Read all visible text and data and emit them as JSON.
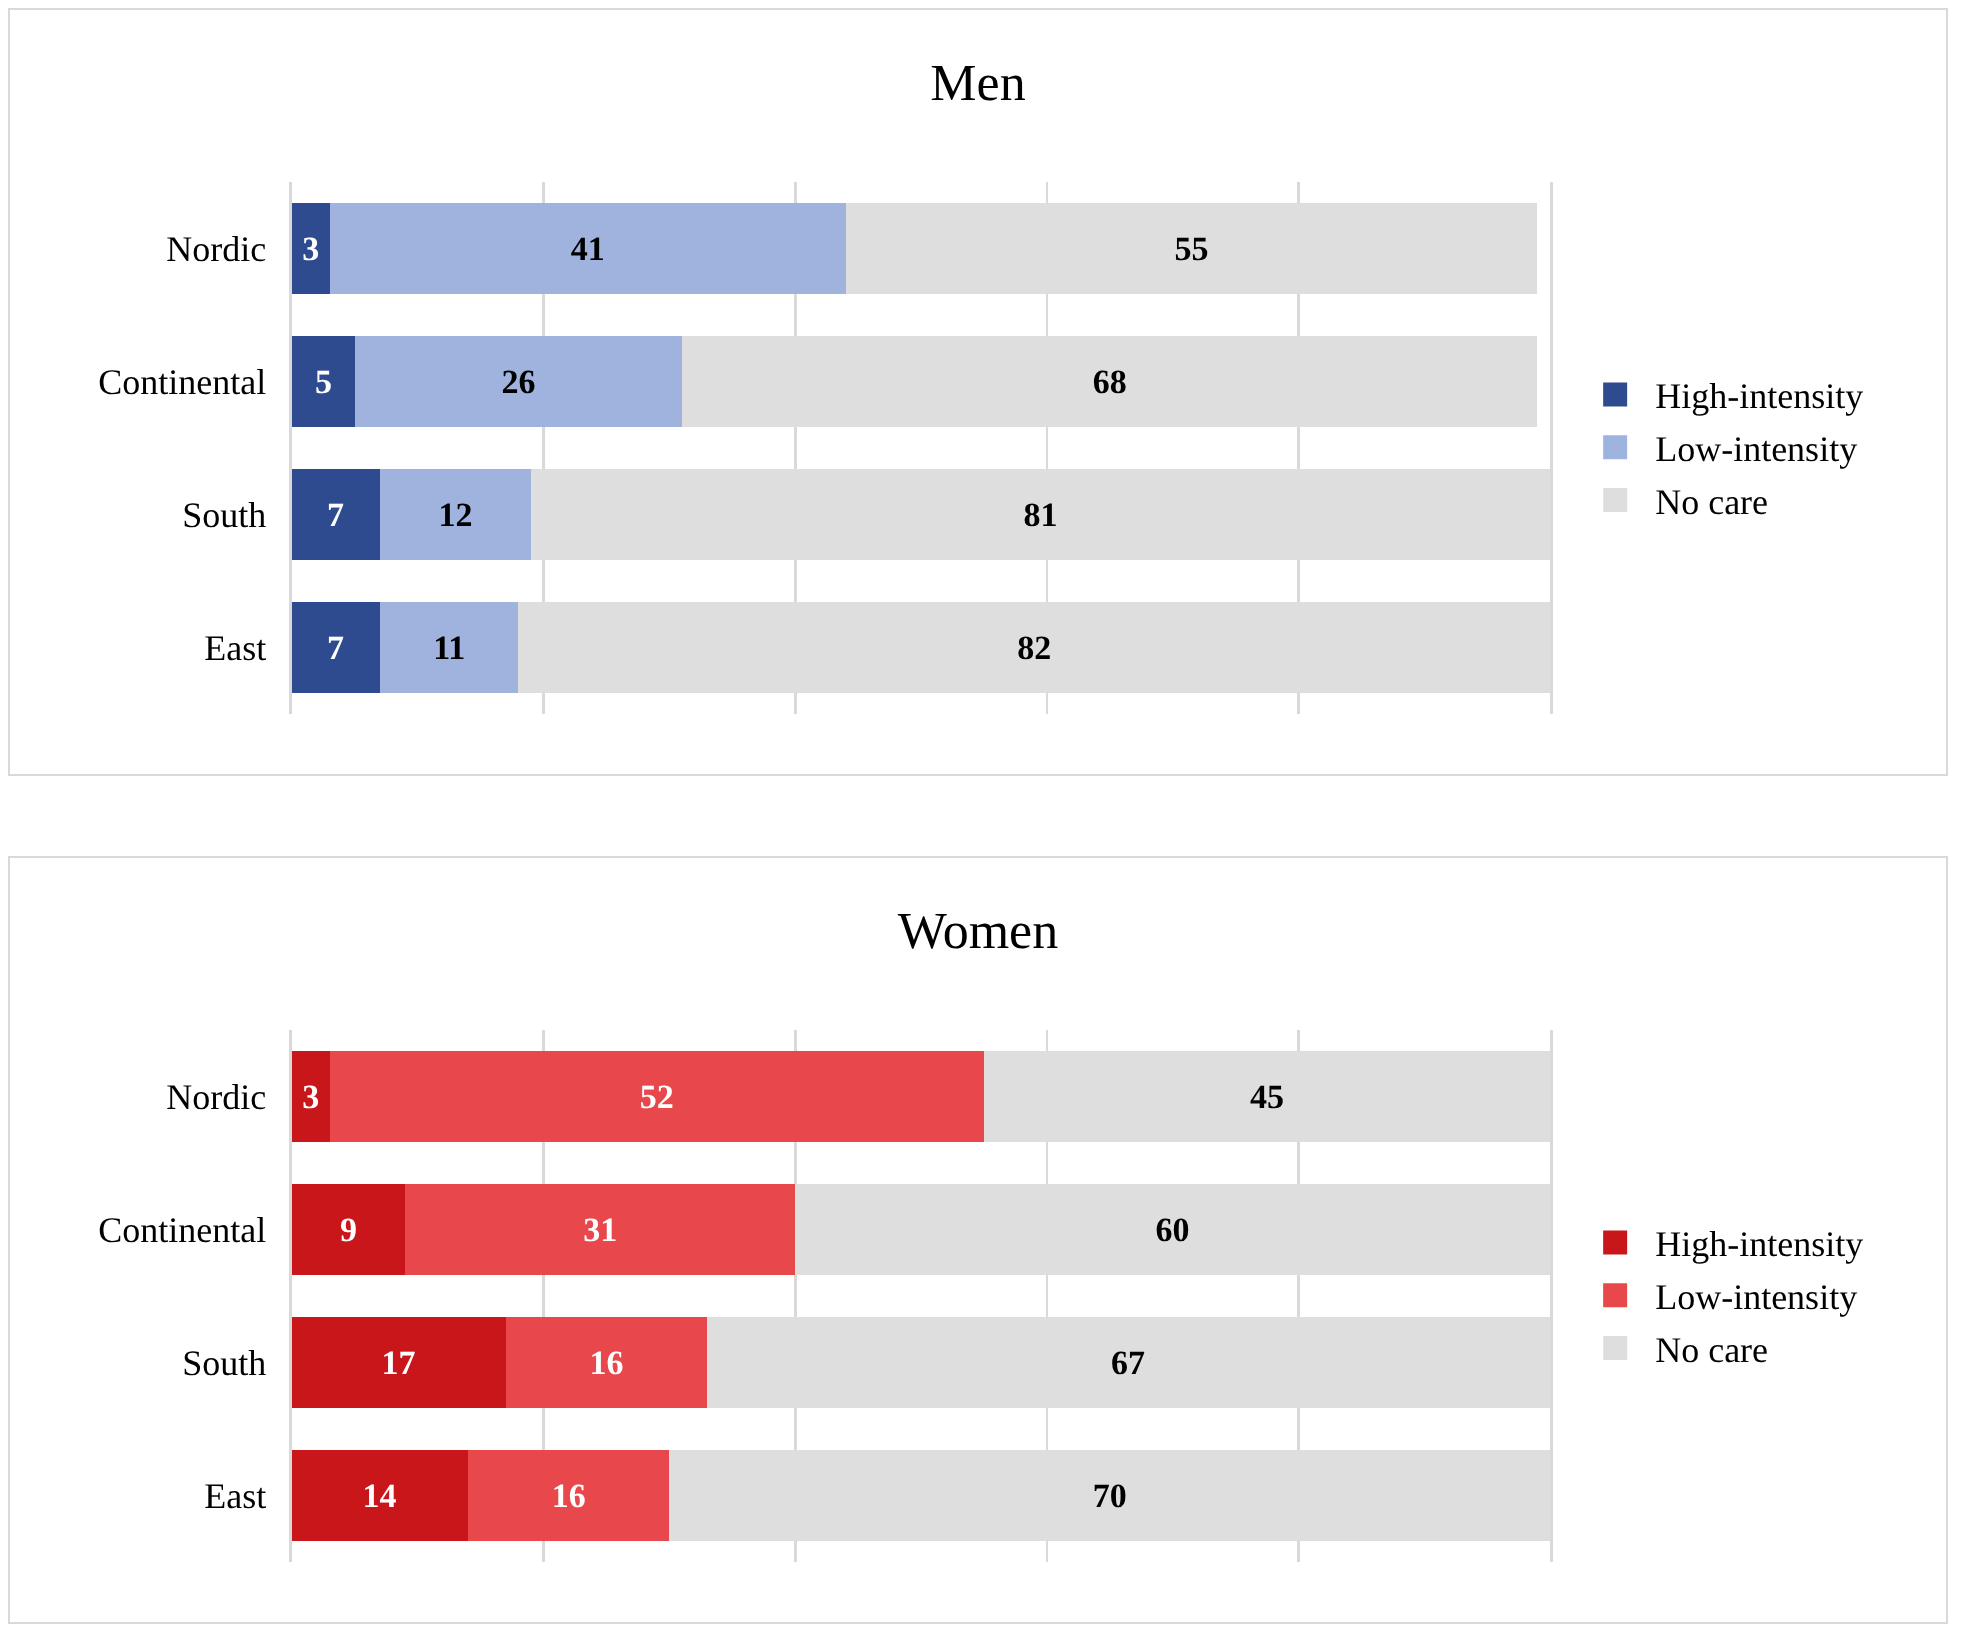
{
  "chart_data": [
    {
      "type": "bar",
      "title": "Men",
      "orientation": "horizontal",
      "stacked": true,
      "categories": [
        "Nordic",
        "Continental",
        "South",
        "East"
      ],
      "series": [
        {
          "name": "High-intensity",
          "color": "#2f4b8f",
          "values": [
            3,
            5,
            7,
            7
          ]
        },
        {
          "name": "Low-intensity",
          "color": "#9fb3de",
          "values": [
            41,
            26,
            12,
            11
          ]
        },
        {
          "name": "No care",
          "color": "#dedede",
          "values": [
            55,
            68,
            81,
            82
          ]
        }
      ],
      "xlim": [
        0,
        100
      ],
      "xticks": [
        {
          "value": 20,
          "label": null
        },
        {
          "value": 40,
          "label": null
        },
        {
          "value": 60,
          "label": null
        },
        {
          "value": 80,
          "label": null
        }
      ],
      "tick_labels": "y",
      "grid": "x",
      "legend": "right",
      "data_labels": true
    },
    {
      "type": "bar",
      "title": "Women",
      "orientation": "horizontal",
      "stacked": true,
      "categories": [
        "Nordic",
        "Continental",
        "South",
        "East"
      ],
      "series": [
        {
          "name": "High-intensity",
          "color": "#c8161b",
          "values": [
            3,
            9,
            17,
            14
          ]
        },
        {
          "name": "Low-intensity",
          "color": "#e8474c",
          "values": [
            52,
            31,
            16,
            16
          ]
        },
        {
          "name": "No care",
          "color": "#dedede",
          "values": [
            45,
            60,
            67,
            70
          ]
        }
      ],
      "xlim": [
        0,
        100
      ],
      "xticks": [
        {
          "value": 20,
          "label": null
        },
        {
          "value": 40,
          "label": null
        },
        {
          "value": 60,
          "label": null
        },
        {
          "value": 80,
          "label": null
        }
      ],
      "tick_labels": "y",
      "grid": "x",
      "legend": "right",
      "data_labels": true
    }
  ]
}
